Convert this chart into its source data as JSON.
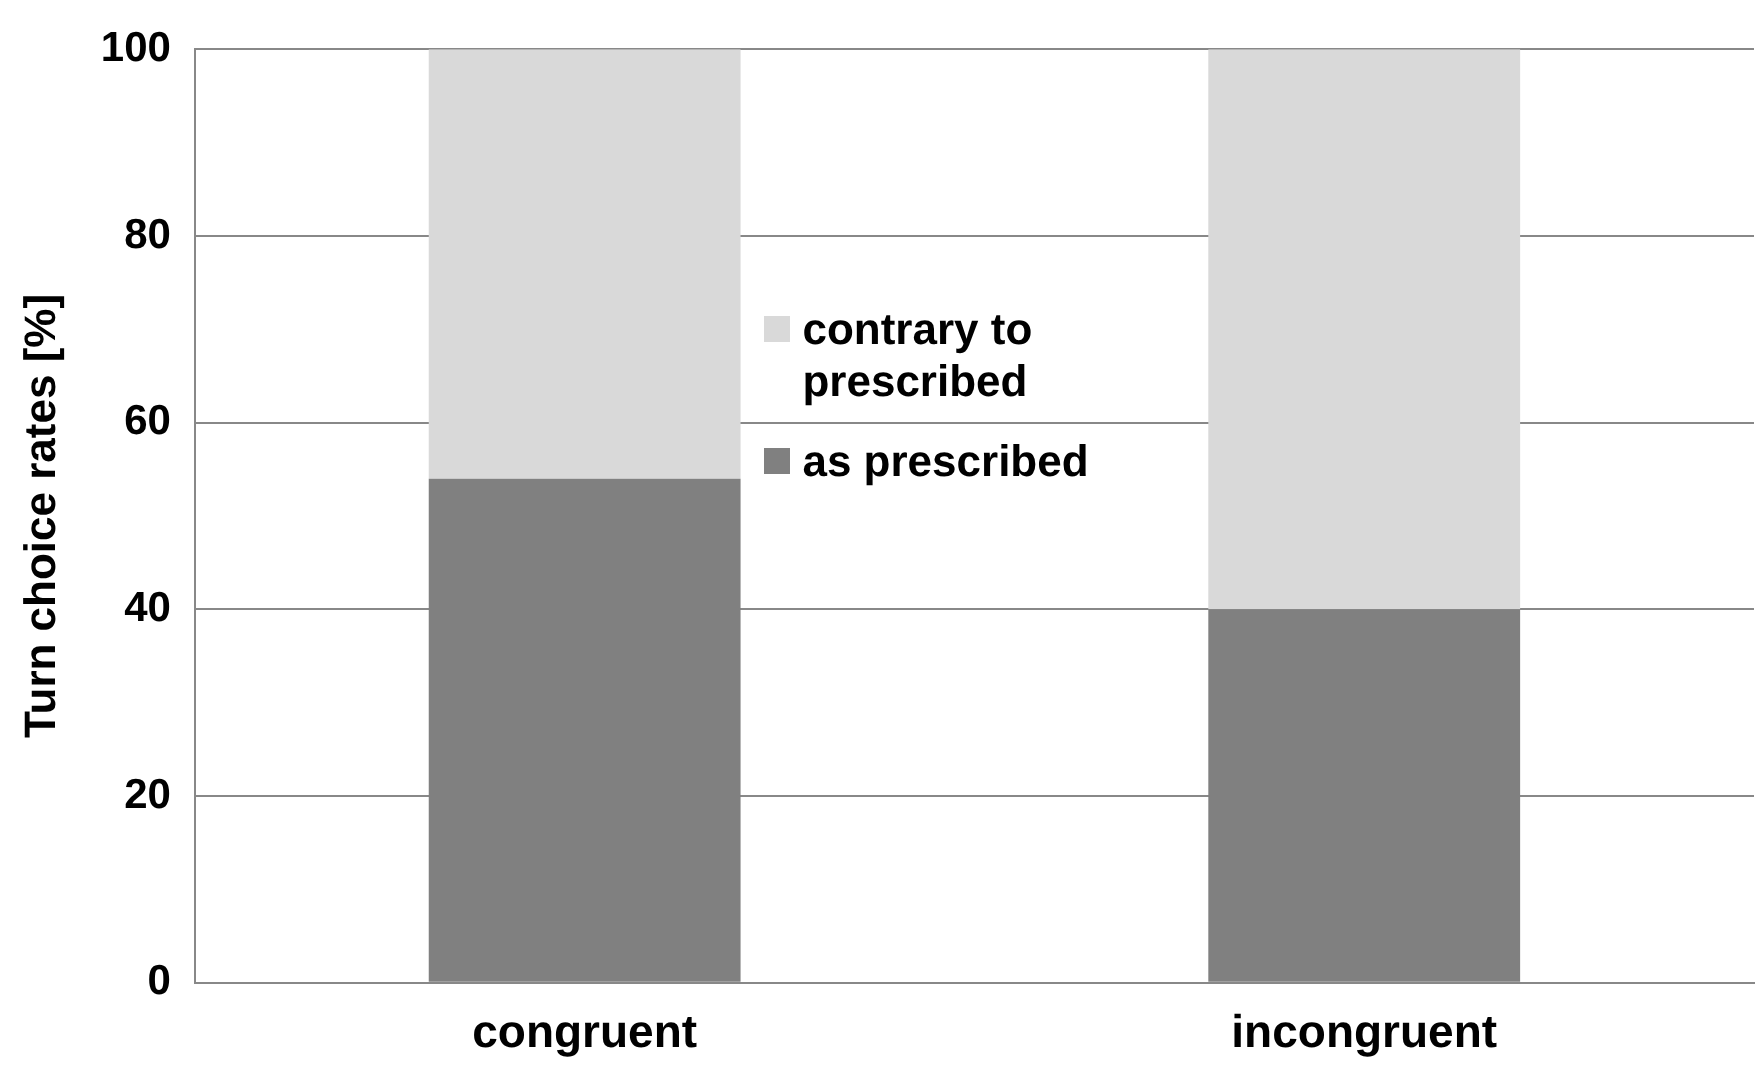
{
  "chart_data": {
    "type": "bar",
    "stacked": true,
    "ylabel": "Turn choice rates [%]",
    "categories": [
      "congruent",
      "incongruent"
    ],
    "series": [
      {
        "name": "as prescribed",
        "color": "#808080",
        "values": [
          54,
          40
        ]
      },
      {
        "name": "contrary to prescribed",
        "color": "#d9d9d9",
        "values": [
          46,
          60
        ]
      }
    ],
    "ylim": [
      0,
      100
    ],
    "yticks": [
      0,
      20,
      40,
      60,
      80,
      100
    ],
    "grid": "y",
    "legend": "center"
  }
}
